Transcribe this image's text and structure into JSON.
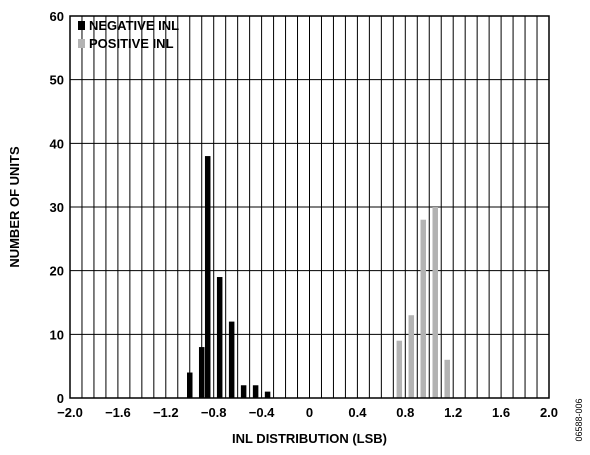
{
  "chart_data": {
    "type": "bar",
    "xlabel": "INL DISTRIBUTION (LSB)",
    "ylabel": "NUMBER OF UNITS",
    "xlim": [
      -2.0,
      2.0
    ],
    "ylim": [
      0,
      60
    ],
    "bin_width": 0.05,
    "grid": true,
    "legend_position": "top-left",
    "x_ticks": [
      "−2.0",
      "−1.6",
      "−1.2",
      "−0.8",
      "−0.4",
      "0",
      "0.4",
      "0.8",
      "1.2",
      "1.6",
      "2.0"
    ],
    "x_tick_values": [
      -2.0,
      -1.6,
      -1.2,
      -0.8,
      -0.4,
      0,
      0.4,
      0.8,
      1.2,
      1.6,
      2.0
    ],
    "y_ticks": [
      "0",
      "10",
      "20",
      "30",
      "40",
      "50",
      "60"
    ],
    "y_tick_values": [
      0,
      10,
      20,
      30,
      40,
      50,
      60
    ],
    "series": [
      {
        "name": "NEGATIVE INL",
        "color": "#000000",
        "x": [
          -1.0,
          -0.9,
          -0.85,
          -0.75,
          -0.65,
          -0.55,
          -0.45,
          -0.35
        ],
        "values": [
          4,
          8,
          38,
          19,
          12,
          2,
          2,
          1
        ]
      },
      {
        "name": "POSITIVE INL",
        "color": "#b3b3b3",
        "x": [
          0.75,
          0.85,
          0.95,
          1.05,
          1.15
        ],
        "values": [
          9,
          13,
          28,
          30,
          6
        ]
      }
    ],
    "figure_id": "06588-006"
  }
}
